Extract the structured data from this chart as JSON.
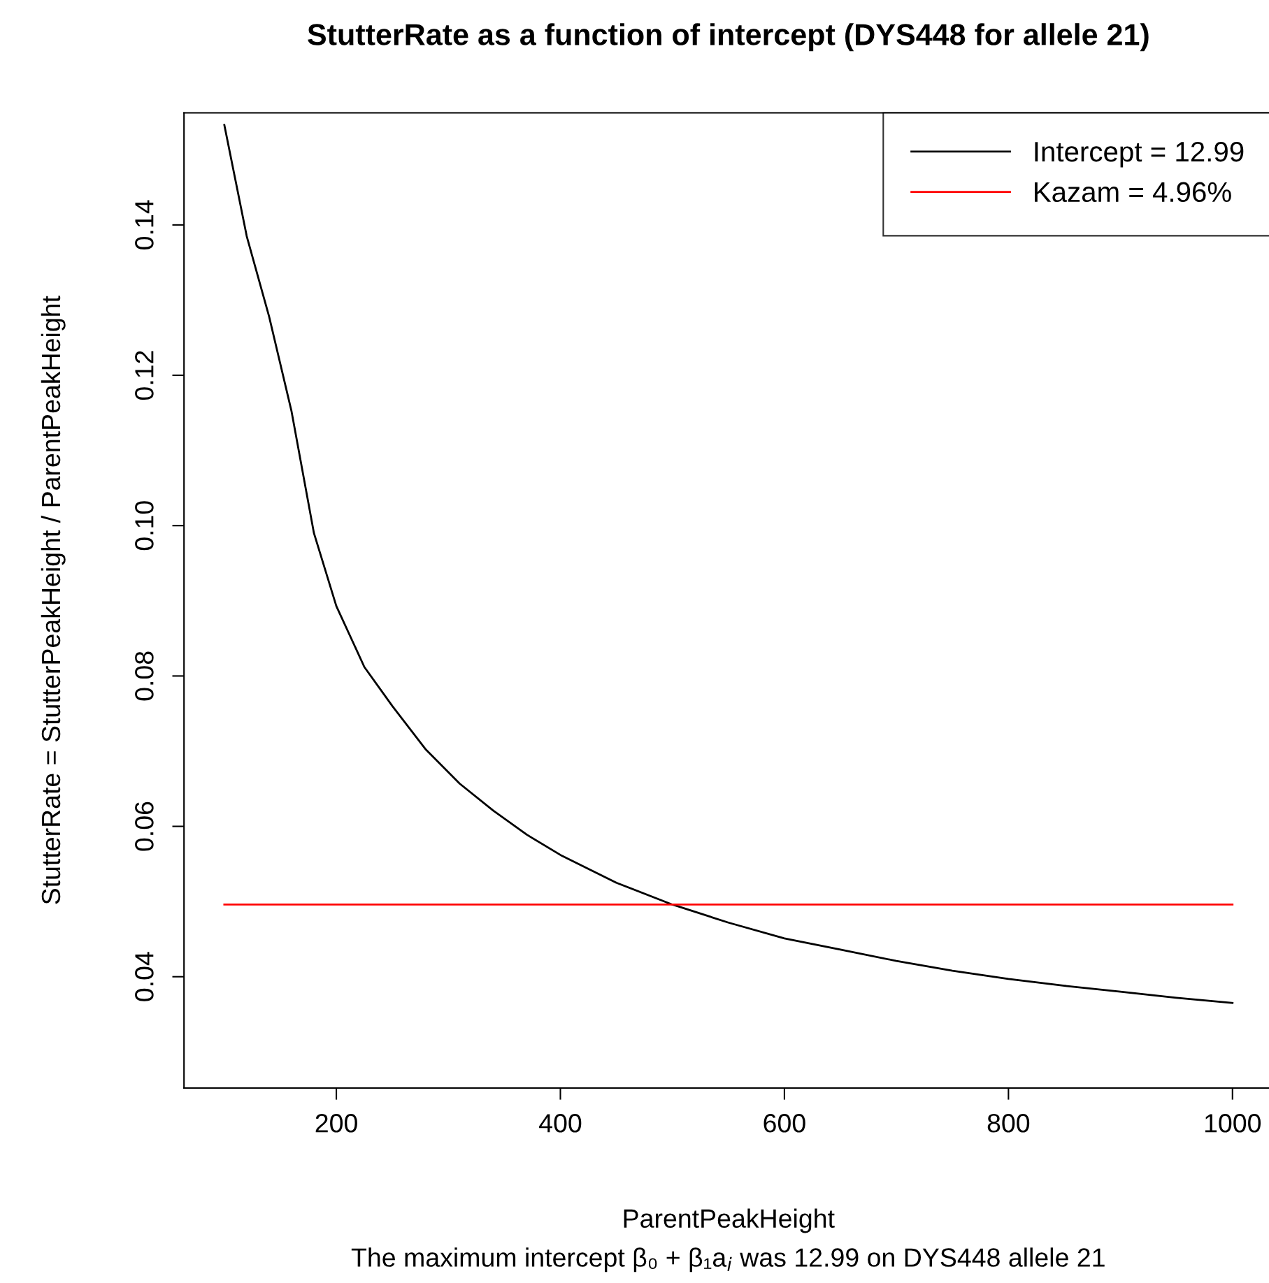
{
  "chart_data": {
    "type": "line",
    "title": "StutterRate as a function of intercept (DYS448 for allele 21)",
    "xlabel": "ParentPeakHeight",
    "ylabel": "StutterRate = StutterPeakHeight / ParentPeakHeight",
    "annotations": [
      "The maximum intercept β₀ + β₁a$_{i}$ was 12.99 on DYS448 allele 21"
    ],
    "series": [
      {
        "name": "Intercept = 12.99",
        "color": "#000000",
        "x": [
          100,
          120,
          140,
          160,
          180,
          200,
          225,
          250,
          280,
          310,
          340,
          370,
          400,
          450,
          500,
          550,
          600,
          650,
          700,
          750,
          800,
          850,
          900,
          950,
          1000
        ],
        "values": [
          0.1533,
          0.1385,
          0.1278,
          0.1152,
          0.099,
          0.0893,
          0.0812,
          0.076,
          0.0702,
          0.0657,
          0.0621,
          0.0589,
          0.0562,
          0.0525,
          0.0496,
          0.0472,
          0.0451,
          0.0436,
          0.0421,
          0.0408,
          0.0397,
          0.0388,
          0.038,
          0.0372,
          0.0365
        ]
      },
      {
        "name": "Kazam = 4.96%",
        "color": "#ff0000",
        "x": [
          100,
          1000
        ],
        "values": [
          0.0496,
          0.0496
        ]
      }
    ],
    "xlim": [
      64,
      1036
    ],
    "ylim": [
      0.0252,
      0.1549
    ],
    "xticks": [
      200,
      400,
      600,
      800,
      1000
    ],
    "yticks": [
      {
        "value": 0.04,
        "label": "0.04"
      },
      {
        "value": 0.06,
        "label": "0.06"
      },
      {
        "value": 0.08,
        "label": "0.08"
      },
      {
        "value": 0.1,
        "label": "0.10"
      },
      {
        "value": 0.12,
        "label": "0.12"
      },
      {
        "value": 0.14,
        "label": "0.14"
      }
    ],
    "grid": false,
    "legend": "top right",
    "line_style": "solid",
    "marker": "none"
  }
}
